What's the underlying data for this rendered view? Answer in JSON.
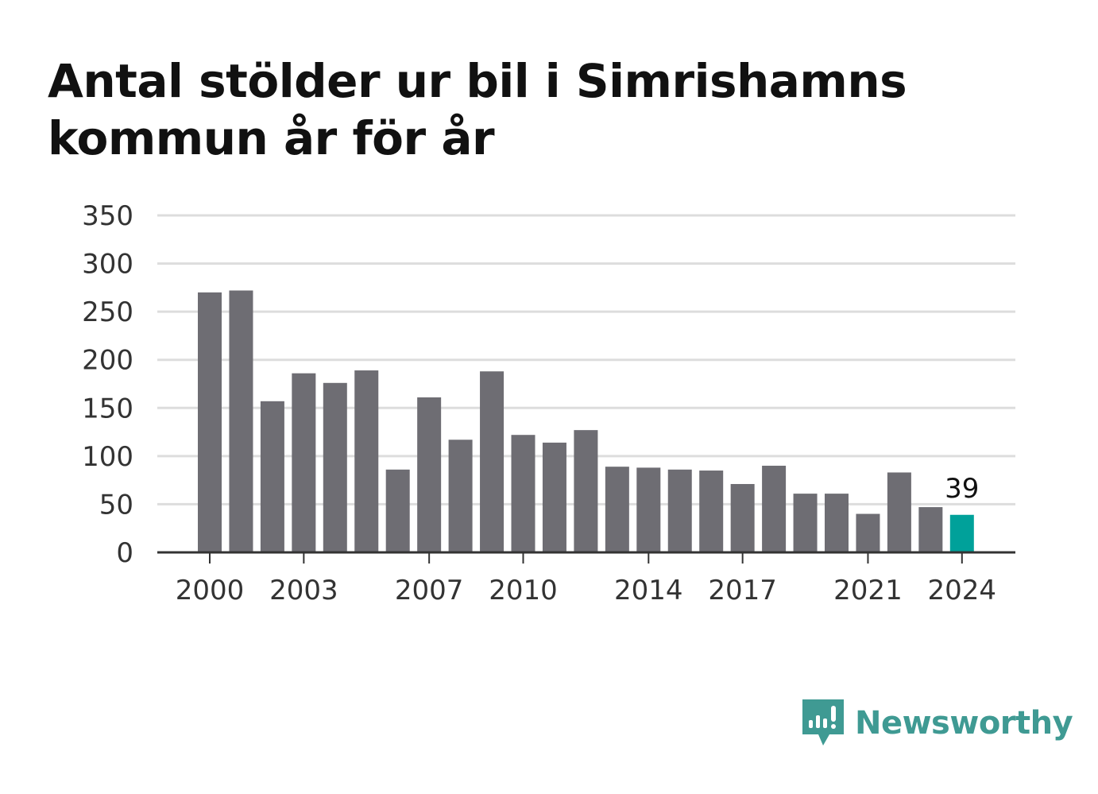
{
  "title": "Antal stölder ur bil i Simrishamns kommun år för år",
  "brand": {
    "name": "Newsworthy",
    "color": "#3f9a93",
    "icon": "newsworthy-logo-icon"
  },
  "colors": {
    "bar": "#6e6d73",
    "highlight": "#00a19a",
    "grid": "#dddddd",
    "axis": "#333333"
  },
  "chart_data": {
    "type": "bar",
    "title": "Antal stölder ur bil i Simrishamns kommun år för år",
    "xlabel": "",
    "ylabel": "",
    "ylim": [
      0,
      350
    ],
    "yticks": [
      0,
      50,
      100,
      150,
      200,
      250,
      300,
      350
    ],
    "xtick_labels": [
      "2000",
      "2003",
      "2007",
      "2010",
      "2014",
      "2017",
      "2021",
      "2024"
    ],
    "categories": [
      "2000",
      "2001",
      "2002",
      "2003",
      "2004",
      "2005",
      "2006",
      "2007",
      "2008",
      "2009",
      "2010",
      "2011",
      "2012",
      "2013",
      "2014",
      "2015",
      "2016",
      "2017",
      "2018",
      "2019",
      "2020",
      "2021",
      "2022",
      "2023",
      "2024"
    ],
    "values": [
      270,
      272,
      157,
      186,
      176,
      189,
      86,
      161,
      117,
      188,
      122,
      114,
      127,
      89,
      88,
      86,
      85,
      71,
      90,
      61,
      61,
      40,
      83,
      47,
      39
    ],
    "highlight_category": "2024",
    "data_labels": [
      {
        "category": "2024",
        "text": "39"
      }
    ],
    "grid": true,
    "legend": "none"
  }
}
